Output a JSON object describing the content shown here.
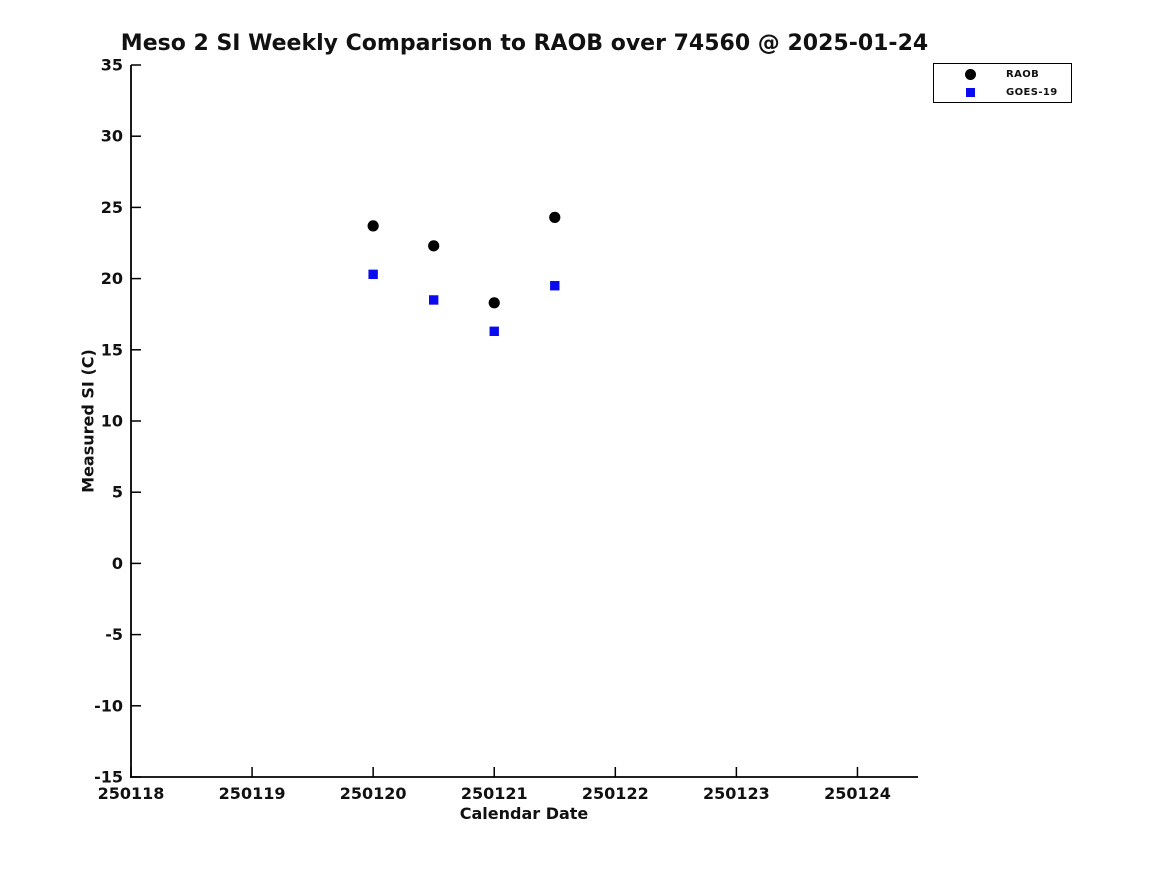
{
  "figure": {
    "title": "Meso 2 SI Weekly Comparison to RAOB over 74560 @ 2025-01-24"
  },
  "axes": {
    "xlabel": "Calendar Date",
    "ylabel": "Measured SI (C)"
  },
  "legend": {
    "items": [
      {
        "label": "RAOB",
        "marker": "circle",
        "color": "#000000"
      },
      {
        "label": "GOES-19",
        "marker": "square",
        "color": "#0a0af0"
      }
    ]
  },
  "colors": {
    "raob": "#000000",
    "goes19": "#0a0af0",
    "axis": "#000000",
    "text": "#111111",
    "background": "#ffffff"
  },
  "chart_data": {
    "type": "scatter",
    "title": "Meso 2 SI Weekly Comparison to RAOB over 74560 @ 2025-01-24",
    "xlabel": "Calendar Date",
    "ylabel": "Measured SI (C)",
    "xlim": [
      250118,
      250124.5
    ],
    "ylim": [
      -15,
      35
    ],
    "xticks": [
      250118,
      250119,
      250120,
      250121,
      250122,
      250123,
      250124
    ],
    "yticks": [
      35,
      30,
      25,
      20,
      15,
      10,
      5,
      0,
      -5,
      -10,
      -15
    ],
    "grid": false,
    "legend_position": "outside-top-right",
    "x": [
      250120,
      250120.5,
      250121,
      250121.5
    ],
    "series": [
      {
        "name": "RAOB",
        "marker": "circle",
        "color": "#000000",
        "values": [
          23.7,
          22.3,
          18.3,
          24.3
        ]
      },
      {
        "name": "GOES-19",
        "marker": "square",
        "color": "#0a0af0",
        "values": [
          20.3,
          18.5,
          16.3,
          19.5
        ]
      }
    ]
  }
}
